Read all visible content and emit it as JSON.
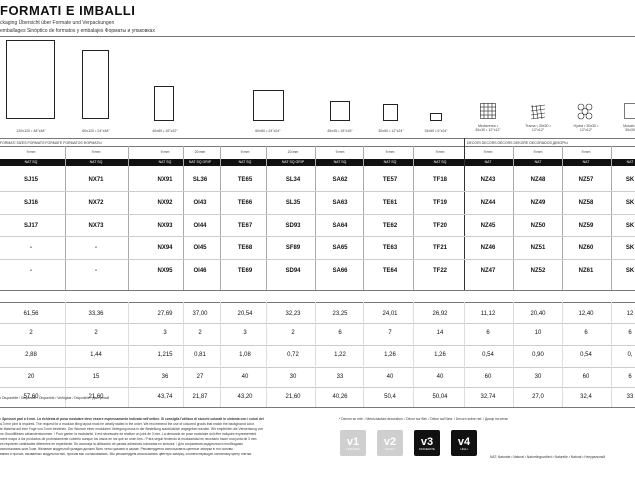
{
  "header": {
    "title": "FORMATI E IMBALLI",
    "sub1": "ckaging  Übersicht über Formate und Verpackungen",
    "sub2": "emballages  Sinóptico de formatos y embalajes  Форматы и упаковках"
  },
  "formats": [
    {
      "label": "120x120 • 48\"x48\""
    },
    {
      "label": "60x120 • 24\"x48\""
    },
    {
      "label": "40x80 • 16\"x32\""
    },
    {
      "label": "60x60 • 24\"x24\""
    },
    {
      "label": "45x45 • 18\"x18\""
    },
    {
      "label": "30x60 • 12\"x24\""
    },
    {
      "label": "15x60 • 6\"x24\""
    },
    {
      "label": "Medaverso • 30x30 • 12\"x12\""
    },
    {
      "label": "Trama • 30x30 • 12\"x12\""
    },
    {
      "label": "Hydra • 30x30 • 12\"x12\""
    },
    {
      "label": "Mosaic • 30x30"
    }
  ],
  "section_labels": {
    "left": "FORMATI  SIZES  FORMATS  FORMATE  FORMATOS  ФОРМАТЫ",
    "right": "DECORI  DECORS  DÉCORS  DEKORE  DECORADOS  ДЕКОРЫ"
  },
  "thickness": [
    "9 mm",
    "9 mm",
    "9 mm",
    "20 mm",
    "9 mm",
    "20 mm",
    "9 mm",
    "9 mm",
    "9 mm",
    "9 mm",
    "9 mm",
    "9 mm"
  ],
  "finish": [
    "NAT SQ",
    "NAT SQ",
    "NAT SQ",
    "NAT SQ GRIP",
    "NAT SQ",
    "NAT SQ GRIP",
    "NAT SQ",
    "NAT SQ",
    "NAT SQ",
    "NAT",
    "NAT",
    "NAT",
    "NAT"
  ],
  "codes": [
    [
      "SJ15",
      "NX71",
      "NX91",
      "SL36",
      "TE65",
      "SL34",
      "SA62",
      "TE57",
      "TF18",
      "NZ43",
      "NZ48",
      "NZ57",
      "SK"
    ],
    [
      "SJ16",
      "NX72",
      "NX92",
      "OI43",
      "TE66",
      "SL35",
      "SA63",
      "TE61",
      "TF19",
      "NZ44",
      "NZ49",
      "NZ58",
      "SK"
    ],
    [
      "SJ17",
      "NX73",
      "NX93",
      "OI44",
      "TE67",
      "SD93",
      "SA64",
      "TE62",
      "TF20",
      "NZ45",
      "NZ50",
      "NZ59",
      "SK"
    ],
    [
      "-",
      "-",
      "NX94",
      "OI45",
      "TE68",
      "SF89",
      "SA65",
      "TE63",
      "TF21",
      "NZ46",
      "NZ51",
      "NZ60",
      "SK"
    ],
    [
      "-",
      "-",
      "NX95",
      "OI46",
      "TE69",
      "SD94",
      "SA66",
      "TE64",
      "TF22",
      "NZ47",
      "NZ52",
      "NZ61",
      "SK"
    ]
  ],
  "pack": [
    [
      "61,56",
      "33,36",
      "27,69",
      "37,00",
      "20,54",
      "32,23",
      "23,25",
      "24,01",
      "26,92",
      "11,12",
      "20,40",
      "12,40",
      "12"
    ],
    [
      "2",
      "2",
      "3",
      "2",
      "3",
      "2",
      "6",
      "7",
      "14",
      "6",
      "10",
      "6",
      "6"
    ],
    [
      "2,88",
      "1,44",
      "1,215",
      "0,81",
      "1,08",
      "0,72",
      "1,22",
      "1,26",
      "1,26",
      "0,54",
      "0,90",
      "0,54",
      "0,"
    ],
    [
      "20",
      "15",
      "36",
      "27",
      "40",
      "30",
      "33",
      "40",
      "40",
      "60",
      "30",
      "60",
      "6"
    ],
    [
      "57,60",
      "21,60",
      "43,74",
      "21,87",
      "43,20",
      "21,60",
      "40,26",
      "50,4",
      "50,04",
      "32,74",
      "27,0",
      "32,4",
      "33"
    ]
  ],
  "footer": {
    "l1": "• Disponibile / Disponible / Disponible / Verfügbar / Disponible / Доступный",
    "l2": "• Spessori pari a 9 mm. La richiesta di posa modulare deve essere espressamente indicata nell'ordine. Si consiglia l'utilizzo di stucchi colorati in sintonia con i colori del",
    "l3": "a 3 mm joint is required. The request for a modular tiling layout must be clearly stated in the order. We recommend the use of coloured grouts that match the background color.",
    "l4": "te Material auf eine Fuge von 3 mm beziehen. Der Wunsch einer modularen Verlegung muss in der Bestellung ausdrücklich angegeben werden. Wir empfehlen die Verwendung von",
    "l5": "ne Grundflliesen abhandenkommen. / Pour garder la modularité, il est nécessaire de réaliser un joint de 3 mm. La demande de pose modulaire doit être indiquée expressément",
    "l6": "ment mayor a los productos de profundamente cubierto aunque los casos en los que se unen tres. / Para seguir teniendo la modularidad es necesario hacer una junta de 3 mm.",
    "l7": "es requieren cantidades diferentes en expediente. Se aconseja la utilización de pastas adhesivas coloradas en sintonía. / Для сохранения модульности необходимо",
    "l8": "использовать шов 3 мм. Желание модульной укладки должно быть четко указано в заказе. Рекомендуется использовать цветные затирки в тон основы.",
    "l9": "вания и прочих, вызванных модульностью, просим вас согласовывать. Мы рекомендуем использовать цветную затирку, соответствующую основному цвету плитки.",
    "decor_note": "* Decoro su rete. / Mesh-backed decoration. / Décor sur filet. / Dekor auf Netz. / Decoro sobre red. / Декор на сетке",
    "nat_note": "NAT: Naturale • Natural • Naturrlingsvollert • Naturelle • Natural • Натуральный"
  },
  "logos": [
    {
      "big": "v1",
      "small": "UNIFORM"
    },
    {
      "big": "v2",
      "small": "SLIGHT"
    },
    {
      "big": "v3",
      "small": "MODERATE"
    },
    {
      "big": "v4",
      "small": "HIGH"
    }
  ]
}
